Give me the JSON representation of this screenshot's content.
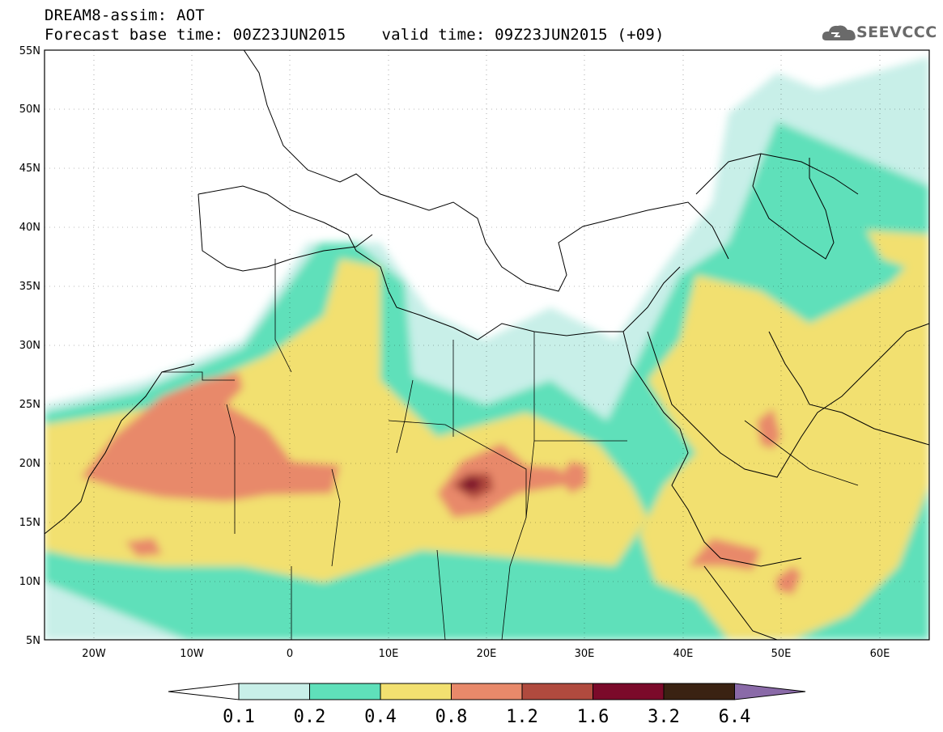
{
  "title": {
    "line1": "DREAM8-assim: AOT",
    "base_label": "Forecast base time: 00Z23JUN2015",
    "valid_label": "valid time: 09Z23JUN2015 (+09)"
  },
  "logo": {
    "text": "SEEVCCC",
    "icon": "cloud-icon"
  },
  "map": {
    "lon_range": [
      -25,
      65
    ],
    "lat_range": [
      5,
      55
    ],
    "lat_ticks": [
      "5N",
      "10N",
      "15N",
      "20N",
      "25N",
      "30N",
      "35N",
      "40N",
      "45N",
      "50N",
      "55N"
    ],
    "lon_ticks": [
      "20W",
      "10W",
      "0",
      "10E",
      "20E",
      "30E",
      "40E",
      "50E",
      "60E"
    ]
  },
  "colorbar": {
    "levels": [
      "0.1",
      "0.2",
      "0.4",
      "0.8",
      "1.2",
      "1.6",
      "3.2",
      "6.4"
    ],
    "colors": {
      "below": "#ffffff",
      "c1": "#c8efe8",
      "c2": "#5fe0ba",
      "c3": "#f2e070",
      "c4": "#e8896a",
      "c5": "#b04a3e",
      "c6": "#7b0a2a",
      "c7": "#3a2212",
      "above": "#8a6aa8"
    }
  }
}
